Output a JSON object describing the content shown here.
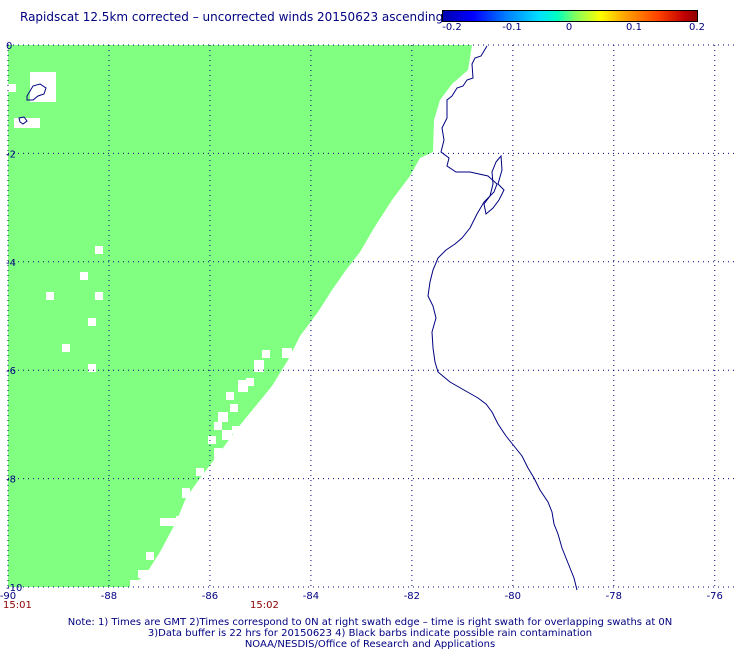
{
  "title": "Rapidscat 12.5km corrected – uncorrected winds 20150623 ascending",
  "colorbar": {
    "labels": [
      "-0.2",
      "-0.1",
      "0",
      "0.1",
      "0.2"
    ],
    "min": -0.2,
    "max": 0.2
  },
  "map": {
    "lon_range": [
      -90,
      -75.5
    ],
    "lat_range": [
      -10,
      0
    ],
    "lon_ticks": [
      "-90",
      "-88",
      "-86",
      "-84",
      "-82",
      "-80",
      "-78",
      "-76"
    ],
    "lat_ticks": [
      "0",
      "-2",
      "-4",
      "-6",
      "-8",
      "-10"
    ],
    "grid": true,
    "swath_color": "#80ff80",
    "coast_color": "#000080",
    "grid_color": "#000080"
  },
  "times": {
    "left": "15:01",
    "mid": "15:02"
  },
  "notes": {
    "line1": "Note: 1) Times are GMT 2)Times correspond to 0N at right swath edge – time is right swath for overlapping swaths at 0N",
    "line2": "3)Data buffer is 22 hrs for 20150623 4) Black barbs indicate possible rain contamination",
    "line3": "NOAA/NESDIS/Office of Research and Applications"
  }
}
